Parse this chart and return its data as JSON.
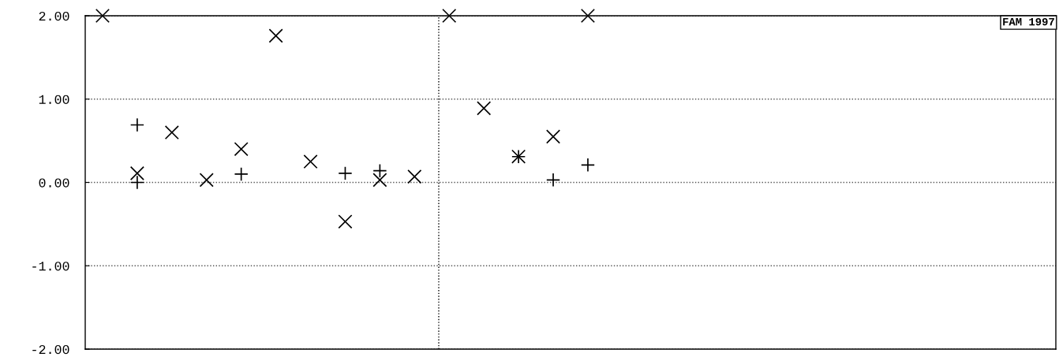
{
  "chart_data": {
    "type": "scatter",
    "categories": [
      null,
      null,
      null,
      null,
      null,
      null,
      null,
      null,
      null,
      null,
      null,
      null,
      null,
      null,
      null,
      null,
      null,
      null,
      null,
      null,
      null,
      null,
      null,
      null,
      null,
      null,
      null,
      null
    ],
    "series": [
      {
        "color": "#000000",
        "marker": "cross",
        "values": [
          2.0,
          0.11,
          0.6,
          0.03,
          0.4,
          1.76,
          0.25,
          -0.47,
          0.03,
          0.07,
          2.0,
          0.89,
          0.31,
          0.55,
          2.0,
          null,
          null,
          null,
          null,
          null,
          null,
          null,
          null,
          null,
          null,
          null,
          null,
          null
        ]
      },
      {
        "color": "#000000",
        "marker": "plus",
        "values": [
          null,
          0.69,
          null,
          null,
          0.1,
          null,
          null,
          0.11,
          0.14,
          null,
          null,
          null,
          0.31,
          0.03,
          0.21,
          null,
          null,
          null,
          null,
          null,
          null,
          null,
          null,
          null,
          null,
          null,
          null,
          null
        ]
      },
      {
        "color": "#000000",
        "marker": "plus",
        "values": [
          null,
          0.0,
          null,
          null,
          null,
          null,
          null,
          null,
          null,
          null,
          null,
          null,
          null,
          null,
          null,
          null,
          null,
          null,
          null,
          null,
          null,
          null,
          null,
          null,
          null,
          null,
          null,
          null
        ]
      }
    ],
    "ylim": [
      -2,
      2
    ],
    "yticks": [
      {
        "value": 2,
        "label": "2.00"
      },
      {
        "value": 1,
        "label": "1.00"
      },
      {
        "value": 0,
        "label": "0.00"
      },
      {
        "value": -1,
        "label": "-1.00"
      },
      {
        "value": -2,
        "label": "-2.00"
      }
    ],
    "grid": "y",
    "tick_labels": "y",
    "annotations": [
      "FAM 1997"
    ]
  }
}
